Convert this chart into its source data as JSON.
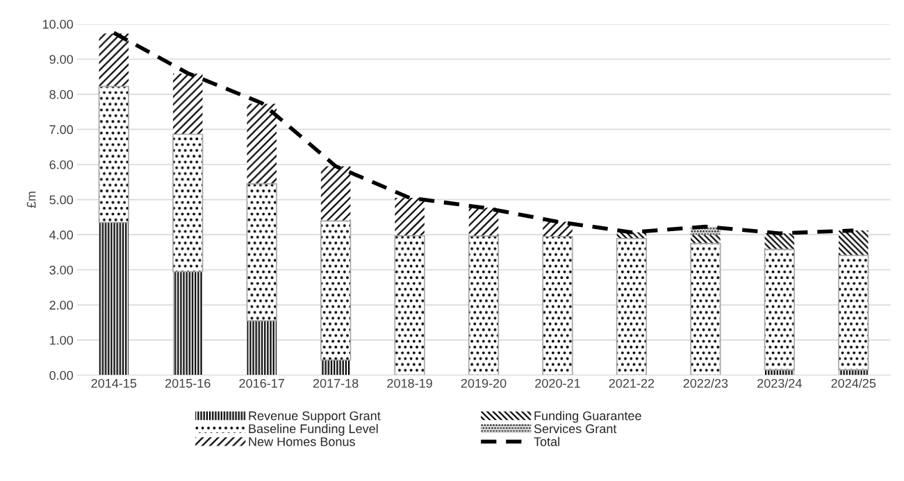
{
  "chart_data": {
    "type": "bar",
    "stacked": true,
    "ylabel": "£m",
    "categories": [
      "2014-15",
      "2015-16",
      "2016-17",
      "2017-18",
      "2018-19",
      "2019-20",
      "2020-21",
      "2021-22",
      "2022/23",
      "2023/24",
      "2024/25"
    ],
    "series": [
      {
        "name": "Revenue Support Grant",
        "color": "#000000",
        "values": [
          4.35,
          2.95,
          1.55,
          0.43,
          null,
          null,
          null,
          null,
          null,
          0.15,
          0.15
        ]
      },
      {
        "name": "Baseline Funding Level",
        "color": "#000000",
        "values": [
          3.87,
          3.91,
          3.9,
          3.96,
          3.97,
          3.96,
          3.95,
          3.89,
          3.75,
          3.43,
          3.26
        ]
      },
      {
        "name": "New Homes Bonus",
        "color": "#000000",
        "values": [
          1.51,
          1.73,
          2.28,
          1.56,
          1.08,
          0.81,
          0.42,
          null,
          null,
          null,
          null
        ]
      },
      {
        "name": "Funding Guarantee",
        "color": "#000000",
        "values": [
          null,
          null,
          null,
          null,
          null,
          null,
          null,
          0.18,
          0.25,
          0.46,
          0.71
        ]
      },
      {
        "name": "Services Grant",
        "color": "#000000",
        "values": [
          null,
          null,
          null,
          null,
          null,
          null,
          null,
          null,
          0.23,
          null,
          null
        ]
      },
      {
        "name": "Total",
        "type": "line",
        "color": "#000000",
        "line_style": "dashed",
        "values": [
          9.75,
          8.6,
          7.75,
          5.95,
          5.05,
          4.77,
          4.37,
          4.07,
          4.23,
          4.04,
          4.12
        ]
      }
    ],
    "ylim": [
      0,
      10
    ],
    "yticks": [
      {
        "value": 0,
        "label": "0.00"
      },
      {
        "value": 1,
        "label": "1.00"
      },
      {
        "value": 2,
        "label": "2.00"
      },
      {
        "value": 3,
        "label": "3.00"
      },
      {
        "value": 4,
        "label": "4.00"
      },
      {
        "value": 5,
        "label": "5.00"
      },
      {
        "value": 6,
        "label": "6.00"
      },
      {
        "value": 7,
        "label": "7.00"
      },
      {
        "value": 8,
        "label": "8.00"
      },
      {
        "value": 9,
        "label": "9.00"
      },
      {
        "value": 10,
        "label": "10.00"
      }
    ],
    "grid": "y",
    "legend": "bottom"
  }
}
